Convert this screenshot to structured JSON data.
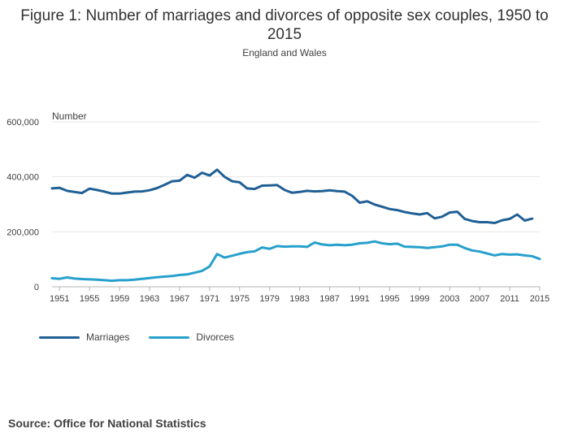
{
  "chart_data": {
    "type": "line",
    "title": "Figure 1: Number of marriages and divorces of opposite sex couples, 1950 to 2015",
    "subtitle": "England and Wales",
    "ylabel": "Number",
    "xlabel": "",
    "source": "Source: Office for National Statistics",
    "ylim": [
      0,
      600000
    ],
    "xlim": [
      1950,
      2015
    ],
    "yticks": [
      0,
      200000,
      400000,
      600000
    ],
    "ytick_labels": [
      "0",
      "200,000",
      "400,000",
      "600,000"
    ],
    "xticks": [
      1951,
      1955,
      1959,
      1963,
      1967,
      1971,
      1975,
      1979,
      1983,
      1987,
      1991,
      1995,
      1999,
      2003,
      2007,
      2011,
      2015
    ],
    "grid": true,
    "legend_position": "bottom-left",
    "x": [
      1950,
      1951,
      1952,
      1953,
      1954,
      1955,
      1956,
      1957,
      1958,
      1959,
      1960,
      1961,
      1962,
      1963,
      1964,
      1965,
      1966,
      1967,
      1968,
      1969,
      1970,
      1971,
      1972,
      1973,
      1974,
      1975,
      1976,
      1977,
      1978,
      1979,
      1980,
      1981,
      1982,
      1983,
      1984,
      1985,
      1986,
      1987,
      1988,
      1989,
      1990,
      1991,
      1992,
      1993,
      1994,
      1995,
      1996,
      1997,
      1998,
      1999,
      2000,
      2001,
      2002,
      2003,
      2004,
      2005,
      2006,
      2007,
      2008,
      2009,
      2010,
      2011,
      2012,
      2013,
      2014,
      2015
    ],
    "series": [
      {
        "name": "Marriages",
        "color": "#206095",
        "values": [
          358000,
          360000,
          349000,
          345000,
          341000,
          357000,
          352000,
          346000,
          339000,
          339000,
          343000,
          346000,
          347000,
          351000,
          359000,
          371000,
          384000,
          386000,
          407000,
          397000,
          415000,
          405000,
          426000,
          400000,
          384000,
          380000,
          358000,
          356000,
          368000,
          369000,
          370000,
          352000,
          342000,
          345000,
          349000,
          347000,
          348000,
          351000,
          348000,
          346000,
          331000,
          306000,
          311000,
          299000,
          291000,
          283000,
          279000,
          272000,
          267000,
          263000,
          268000,
          249000,
          255000,
          270000,
          273000,
          247000,
          239000,
          235000,
          235000,
          232000,
          242000,
          247000,
          263000,
          241000,
          248000,
          null
        ]
      },
      {
        "name": "Divorces",
        "color": "#27a0cc",
        "values": [
          31000,
          29000,
          34000,
          30000,
          28000,
          27000,
          26000,
          24000,
          22000,
          24000,
          24000,
          26000,
          29000,
          32000,
          35000,
          37000,
          39000,
          43000,
          45000,
          51000,
          58000,
          74000,
          119000,
          106000,
          113000,
          120000,
          126000,
          129000,
          143000,
          138000,
          148000,
          146000,
          147000,
          147000,
          145000,
          161000,
          154000,
          151000,
          153000,
          151000,
          153000,
          158000,
          160000,
          165000,
          158000,
          155000,
          157000,
          146000,
          145000,
          144000,
          141000,
          144000,
          147000,
          153000,
          153000,
          141000,
          132000,
          128000,
          121000,
          114000,
          119000,
          117000,
          118000,
          114000,
          111000,
          101000
        ]
      }
    ]
  }
}
